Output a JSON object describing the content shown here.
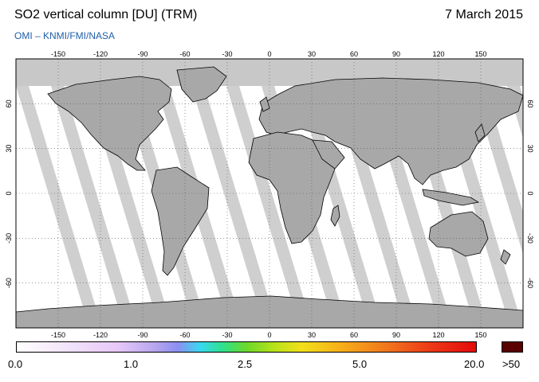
{
  "header": {
    "title": "SO2 vertical column [DU] (TRM)",
    "date": "7 March 2015",
    "credit": "OMI  –  KNMI/FMI/NASA"
  },
  "map": {
    "projection": "equirectangular",
    "lon_ticks": [
      "-150",
      "-120",
      "-90",
      "-60",
      "-30",
      "0",
      "30",
      "60",
      "90",
      "120",
      "150"
    ],
    "lat_ticks": [
      "60",
      "30",
      "0",
      "-30",
      "-60"
    ],
    "land_color": "#a8a8a8",
    "no_data_color": "#c8c8c8",
    "background_color": "#ffffff",
    "grid": "dotted"
  },
  "colorbar": {
    "labels": [
      "0.0",
      "1.0",
      "2.5",
      "5.0",
      "20.0"
    ],
    "overflow_label": ">50",
    "overflow_color": "#5a0000",
    "colors": [
      "#ffffff",
      "#e6c8f7",
      "#8c8ff2",
      "#38d9f0",
      "#2fe08a",
      "#b6e21a",
      "#f2e01a",
      "#f27a1c",
      "#e40a0a"
    ]
  }
}
